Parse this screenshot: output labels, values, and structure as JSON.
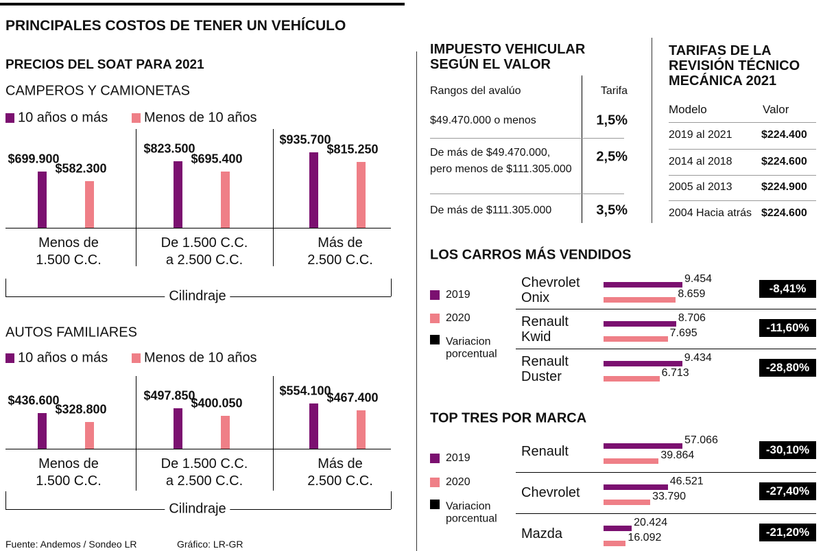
{
  "title": "PRINCIPALES COSTOS DE TENER UN VEHÍCULO",
  "soat_title": "PRECIOS DEL SOAT PARA 2021",
  "chart_data": [
    {
      "type": "bar",
      "title": "CAMPEROS Y CAMIONETAS",
      "x_label": "Cilindraje",
      "categories": [
        "Menos de\n1.500 C.C.",
        "De 1.500 C.C.\na 2.500 C.C.",
        "Más de\n2.500 C.C."
      ],
      "series": [
        {
          "name": "10 años o más",
          "color": "#7b1070",
          "values": [
            699900,
            823500,
            935700
          ],
          "value_labels": [
            "$699.900",
            "$823.500",
            "$935.700"
          ]
        },
        {
          "name": "Menos de 10 años",
          "color": "#ef7f87",
          "values": [
            582300,
            695400,
            815250
          ],
          "value_labels": [
            "$582.300",
            "$695.400",
            "$815.250"
          ]
        }
      ]
    },
    {
      "type": "bar",
      "title": "AUTOS FAMILIARES",
      "x_label": "Cilindraje",
      "categories": [
        "Menos de\n1.500 C.C.",
        "De 1.500 C.C.\na 2.500 C.C.",
        "Más de\n2.500 C.C."
      ],
      "series": [
        {
          "name": "10 años o más",
          "color": "#7b1070",
          "values": [
            436600,
            497850,
            554100
          ],
          "value_labels": [
            "$436.600",
            "$497.850",
            "$554.100"
          ]
        },
        {
          "name": "Menos de 10 años",
          "color": "#ef7f87",
          "values": [
            328800,
            400050,
            467400
          ],
          "value_labels": [
            "$328.800",
            "$400.050",
            "$467.400"
          ]
        }
      ]
    },
    {
      "type": "barh",
      "title": "LOS CARROS MÁS VENDIDOS",
      "categories": [
        "Chevrolet\nOnix",
        "Renault\nKwid",
        "Renault\nDuster"
      ],
      "series": [
        {
          "name": "2019",
          "color": "#7b1070",
          "values": [
            9454,
            8706,
            9434
          ],
          "value_labels": [
            "9.454",
            "8.706",
            "9.434"
          ]
        },
        {
          "name": "2020",
          "color": "#ef7f87",
          "values": [
            8659,
            7695,
            6713
          ],
          "value_labels": [
            "8.659",
            "7.695",
            "6.713"
          ]
        },
        {
          "name": "Variacion porcentual",
          "color": "#000000",
          "values": [
            -8.41,
            -11.6,
            -28.8
          ],
          "value_labels": [
            "-8,41%",
            "-11,60%",
            "-28,80%"
          ]
        }
      ]
    },
    {
      "type": "barh",
      "title": "TOP TRES POR MARCA",
      "categories": [
        "Renault",
        "Chevrolet",
        "Mazda"
      ],
      "series": [
        {
          "name": "2019",
          "color": "#7b1070",
          "values": [
            57066,
            46521,
            20424
          ],
          "value_labels": [
            "57.066",
            "46.521",
            "20.424"
          ]
        },
        {
          "name": "2020",
          "color": "#ef7f87",
          "values": [
            39864,
            33790,
            16092
          ],
          "value_labels": [
            "39.864",
            "33.790",
            "16.092"
          ]
        },
        {
          "name": "Variacion porcentual",
          "color": "#000000",
          "values": [
            -30.1,
            -27.4,
            -21.2
          ],
          "value_labels": [
            "-30,10%",
            "-27,40%",
            "-21,20%"
          ]
        }
      ]
    }
  ],
  "impuesto": {
    "title": "IMPUESTO VEHICULAR\nSEGÚN EL VALOR",
    "header": [
      "Rangos del avalúo",
      "Tarifa"
    ],
    "rows": [
      [
        "$49.470.000 o menos",
        "1,5%"
      ],
      [
        "De más de $49.470.000,\npero menos de $111.305.000",
        "2,5%"
      ],
      [
        "De más de $111.305.000",
        "3,5%"
      ]
    ]
  },
  "revision": {
    "title": "TARIFAS DE LA\nREVISIÓN TÉCNICO\nMECÁNICA 2021",
    "header": [
      "Modelo",
      "Valor"
    ],
    "rows": [
      [
        "2019 al 2021",
        "$224.400"
      ],
      [
        "2014 al 2018",
        "$224.600"
      ],
      [
        "2005 al 2013",
        "$224.900"
      ],
      [
        "2004 Hacia atrás",
        "$224.600"
      ]
    ]
  },
  "source": "Fuente: Andemos / Sondeo LR",
  "credit": "Gráfico: LR-GR"
}
